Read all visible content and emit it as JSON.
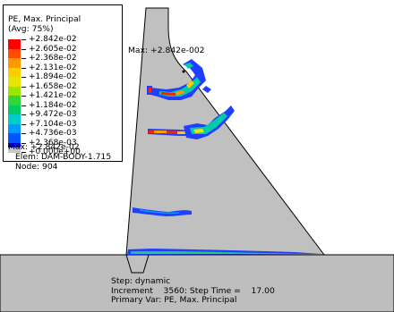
{
  "legend": {
    "title": "PE, Max. Principal",
    "averaging": "(Avg: 75%)",
    "entries": [
      {
        "label": "+2.842e-02",
        "color": "#ff0000"
      },
      {
        "label": "+2.605e-02",
        "color": "#ff4d00"
      },
      {
        "label": "+2.368e-02",
        "color": "#ff9900"
      },
      {
        "label": "+2.131e-02",
        "color": "#ffcc00"
      },
      {
        "label": "+1.894e-02",
        "color": "#e6e600"
      },
      {
        "label": "+1.658e-02",
        "color": "#99e600"
      },
      {
        "label": "+1.421e-02",
        "color": "#33d633"
      },
      {
        "label": "+1.184e-02",
        "color": "#00cc66"
      },
      {
        "label": "+9.472e-03",
        "color": "#00cccc"
      },
      {
        "label": "+7.104e-03",
        "color": "#0099ff"
      },
      {
        "label": "+4.736e-03",
        "color": "#0055ff"
      },
      {
        "label": "+2.368e-03",
        "color": "#0000ff"
      },
      {
        "label": "+0.000e+00",
        "color": "#c8c8c8"
      }
    ],
    "max_text": "Max: +2.842e-02",
    "elem_text": "Elem: DAM-BODY-1.715",
    "node_text": "Node: 904"
  },
  "model": {
    "max_marker_label": "Max: +2.842e-002",
    "surface_color": "#c0c0c0",
    "outline_color": "#000000"
  },
  "status": {
    "step": "Step: dynamic",
    "increment": "Increment    3560: Step Time =    17.00",
    "primary_var": "Primary Var: PE, Max. Principal"
  }
}
